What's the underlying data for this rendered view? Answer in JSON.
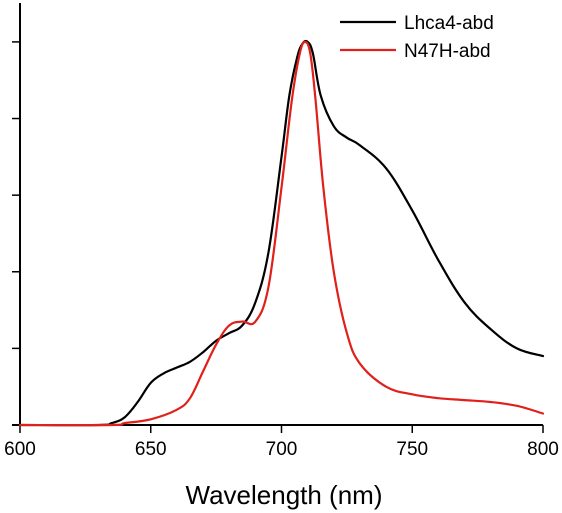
{
  "chart_data": {
    "type": "line",
    "title": "",
    "xlabel": "Wavelength (nm)",
    "ylabel": "",
    "xlim": [
      600,
      800
    ],
    "ylim": [
      0,
      1
    ],
    "x_ticks": [
      600,
      650,
      700,
      750,
      800
    ],
    "x_tick_labels": [
      "600",
      "650",
      "700",
      "750",
      "800"
    ],
    "y_ticks": [
      0,
      0.2,
      0.4,
      0.6,
      0.8,
      1.0
    ],
    "grid": false,
    "legend_position": "top-right",
    "series": [
      {
        "name": "Lhca4-abd",
        "color": "#000000",
        "x": [
          600,
          630,
          635,
          640,
          645,
          650,
          655,
          660,
          665,
          670,
          675,
          680,
          685,
          690,
          695,
          700,
          703,
          706,
          708,
          710,
          712,
          715,
          720,
          725,
          730,
          740,
          750,
          760,
          770,
          780,
          790,
          800
        ],
        "y": [
          0,
          0.0,
          0.005,
          0.02,
          0.06,
          0.11,
          0.135,
          0.15,
          0.165,
          0.19,
          0.22,
          0.24,
          0.26,
          0.32,
          0.45,
          0.7,
          0.86,
          0.96,
          0.995,
          1.0,
          0.97,
          0.86,
          0.78,
          0.75,
          0.73,
          0.67,
          0.56,
          0.43,
          0.32,
          0.25,
          0.2,
          0.18
        ]
      },
      {
        "name": "N47H-abd",
        "color": "#e0201a",
        "x": [
          600,
          635,
          640,
          650,
          660,
          665,
          670,
          675,
          680,
          685,
          690,
          695,
          700,
          704,
          707,
          709,
          711,
          713,
          716,
          720,
          725,
          730,
          740,
          750,
          760,
          770,
          780,
          790,
          800
        ],
        "y": [
          0,
          0.0,
          0.005,
          0.015,
          0.04,
          0.07,
          0.14,
          0.21,
          0.26,
          0.27,
          0.27,
          0.36,
          0.62,
          0.85,
          0.97,
          1.0,
          0.97,
          0.85,
          0.62,
          0.4,
          0.24,
          0.16,
          0.1,
          0.08,
          0.07,
          0.065,
          0.06,
          0.05,
          0.03
        ]
      }
    ]
  }
}
